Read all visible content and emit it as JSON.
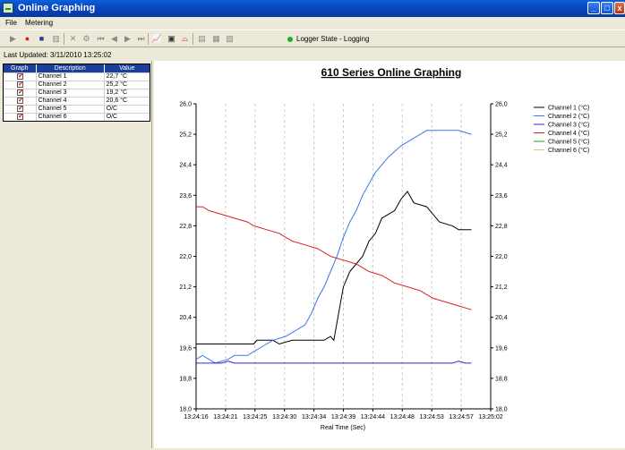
{
  "window": {
    "title": "Online Graphing"
  },
  "titlebar_buttons": {
    "minimize": "_",
    "maximize": "□",
    "close": "x"
  },
  "menu": {
    "file": "File",
    "metering": "Metering"
  },
  "toolbar": {
    "logger_state": "Logger State - Logging"
  },
  "last_updated": "Last Updated: 3/11/2010 13:25:02",
  "table": {
    "headers": [
      "Graph",
      "Description",
      "Value"
    ],
    "rows": [
      {
        "description": "Channel 1",
        "value": "22,7 °C"
      },
      {
        "description": "Channel 2",
        "value": "25,2 °C"
      },
      {
        "description": "Channel 3",
        "value": "19,2 °C"
      },
      {
        "description": "Channel 4",
        "value": "20,6 °C"
      },
      {
        "description": "Channel 5",
        "value": "O/C"
      },
      {
        "description": "Channel 6",
        "value": "O/C"
      }
    ]
  },
  "chart_data": {
    "type": "line",
    "title": "610 Series Online Graphing",
    "xlabel": "Real Time (Sec)",
    "ylabel": "",
    "ylim": [
      18.0,
      26.0
    ],
    "yticks": [
      "18,0",
      "18,8",
      "19,6",
      "20,4",
      "21,2",
      "22,0",
      "22,8",
      "23,6",
      "24,4",
      "25,2",
      "26,0"
    ],
    "x_ticks": [
      "13:24:16",
      "13:24:21",
      "13:24:25",
      "13:24:30",
      "13:24:34",
      "13:24:39",
      "13:24:44",
      "13:24:48",
      "13:24:53",
      "13:24:57",
      "13:25:02"
    ],
    "x_range_seconds": [
      0,
      46
    ],
    "grid": "vertical dashed",
    "legend_position": "right",
    "series": [
      {
        "name": "Channel 1 (°C)",
        "color": "#000000",
        "points": [
          [
            0,
            19.7
          ],
          [
            7,
            19.7
          ],
          [
            9,
            19.7
          ],
          [
            9.5,
            19.8
          ],
          [
            12,
            19.8
          ],
          [
            13,
            19.7
          ],
          [
            15,
            19.8
          ],
          [
            20,
            19.8
          ],
          [
            21,
            19.9
          ],
          [
            21.5,
            19.8
          ],
          [
            23,
            21.2
          ],
          [
            24,
            21.6
          ],
          [
            25,
            21.8
          ],
          [
            26,
            22.0
          ],
          [
            27,
            22.4
          ],
          [
            28,
            22.6
          ],
          [
            29,
            23.0
          ],
          [
            31,
            23.2
          ],
          [
            32,
            23.5
          ],
          [
            33,
            23.7
          ],
          [
            34,
            23.4
          ],
          [
            36,
            23.3
          ],
          [
            37,
            23.1
          ],
          [
            38,
            22.9
          ],
          [
            40,
            22.8
          ],
          [
            41,
            22.7
          ],
          [
            43,
            22.7
          ]
        ]
      },
      {
        "name": "Channel 2 (°C)",
        "color": "#3a78e8",
        "points": [
          [
            0,
            19.3
          ],
          [
            1,
            19.4
          ],
          [
            2,
            19.3
          ],
          [
            3,
            19.2
          ],
          [
            5,
            19.3
          ],
          [
            6,
            19.4
          ],
          [
            8,
            19.4
          ],
          [
            9,
            19.5
          ],
          [
            11,
            19.7
          ],
          [
            12,
            19.8
          ],
          [
            14,
            19.9
          ],
          [
            15,
            20.0
          ],
          [
            17,
            20.2
          ],
          [
            18,
            20.5
          ],
          [
            19,
            20.9
          ],
          [
            20,
            21.2
          ],
          [
            21,
            21.6
          ],
          [
            22,
            22.0
          ],
          [
            23,
            22.5
          ],
          [
            24,
            22.9
          ],
          [
            25,
            23.2
          ],
          [
            26,
            23.6
          ],
          [
            27,
            23.9
          ],
          [
            28,
            24.2
          ],
          [
            30,
            24.6
          ],
          [
            32,
            24.9
          ],
          [
            34,
            25.1
          ],
          [
            36,
            25.3
          ],
          [
            39,
            25.3
          ],
          [
            41,
            25.3
          ],
          [
            43,
            25.2
          ]
        ]
      },
      {
        "name": "Channel 3 (°C)",
        "color": "#2a2ad0",
        "points": [
          [
            0,
            19.2
          ],
          [
            4,
            19.2
          ],
          [
            5,
            19.25
          ],
          [
            6,
            19.2
          ],
          [
            40,
            19.2
          ],
          [
            41,
            19.25
          ],
          [
            42,
            19.2
          ],
          [
            43,
            19.2
          ]
        ]
      },
      {
        "name": "Channel 4 (°C)",
        "color": "#d82020",
        "points": [
          [
            0,
            23.3
          ],
          [
            1,
            23.3
          ],
          [
            2,
            23.2
          ],
          [
            4,
            23.1
          ],
          [
            6,
            23.0
          ],
          [
            8,
            22.9
          ],
          [
            9,
            22.8
          ],
          [
            11,
            22.7
          ],
          [
            13,
            22.6
          ],
          [
            15,
            22.4
          ],
          [
            17,
            22.3
          ],
          [
            19,
            22.2
          ],
          [
            21,
            22.0
          ],
          [
            23,
            21.9
          ],
          [
            25,
            21.8
          ],
          [
            27,
            21.6
          ],
          [
            29,
            21.5
          ],
          [
            31,
            21.3
          ],
          [
            33,
            21.2
          ],
          [
            35,
            21.1
          ],
          [
            37,
            20.9
          ],
          [
            39,
            20.8
          ],
          [
            41,
            20.7
          ],
          [
            43,
            20.6
          ]
        ]
      },
      {
        "name": "Channel 5 (°C)",
        "color": "#18a018",
        "points": []
      },
      {
        "name": "Channel 6 (°C)",
        "color": "#e6c080",
        "points": []
      }
    ]
  }
}
